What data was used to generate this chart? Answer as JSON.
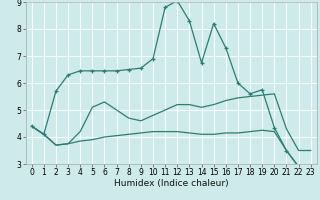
{
  "xlabel": "Humidex (Indice chaleur)",
  "background_color": "#ceeaea",
  "grid_color": "#f5ffff",
  "line_color": "#2e7d72",
  "xlim": [
    -0.5,
    23.5
  ],
  "ylim": [
    3,
    9
  ],
  "xticks": [
    0,
    1,
    2,
    3,
    4,
    5,
    6,
    7,
    8,
    9,
    10,
    11,
    12,
    13,
    14,
    15,
    16,
    17,
    18,
    19,
    20,
    21,
    22,
    23
  ],
  "yticks": [
    3,
    4,
    5,
    6,
    7,
    8,
    9
  ],
  "lines": [
    {
      "x": [
        0,
        1,
        2,
        3,
        4,
        5,
        6,
        7,
        8,
        9,
        10,
        11,
        12,
        13,
        14,
        15,
        16,
        17,
        18,
        19,
        20,
        21,
        22,
        23
      ],
      "y": [
        4.4,
        4.1,
        3.7,
        3.75,
        3.85,
        3.9,
        4.0,
        4.05,
        4.1,
        4.15,
        4.2,
        4.2,
        4.2,
        4.15,
        4.1,
        4.1,
        4.15,
        4.15,
        4.2,
        4.25,
        4.2,
        3.5,
        2.9,
        2.8
      ],
      "marker": null
    },
    {
      "x": [
        0,
        1,
        2,
        3,
        4,
        5,
        6,
        7,
        8,
        9,
        10,
        11,
        12,
        13,
        14,
        15,
        16,
        17,
        18,
        19,
        20,
        21,
        22,
        23
      ],
      "y": [
        4.4,
        4.1,
        3.7,
        3.75,
        4.2,
        5.1,
        5.3,
        5.0,
        4.7,
        4.6,
        4.8,
        5.0,
        5.2,
        5.2,
        5.1,
        5.2,
        5.35,
        5.45,
        5.5,
        5.55,
        5.6,
        4.3,
        3.5,
        3.5
      ],
      "marker": null
    },
    {
      "x": [
        0,
        1,
        2,
        3,
        4,
        5,
        6,
        7,
        8,
        9,
        10,
        11,
        12,
        13,
        14,
        15,
        16,
        17,
        18,
        19,
        20,
        21,
        22,
        23
      ],
      "y": [
        4.4,
        4.1,
        5.7,
        6.3,
        6.45,
        6.45,
        6.45,
        6.45,
        6.5,
        6.55,
        6.9,
        8.8,
        9.05,
        8.3,
        6.75,
        8.2,
        7.3,
        6.0,
        5.6,
        5.75,
        4.35,
        3.5,
        2.9,
        2.8
      ],
      "marker": "+"
    }
  ],
  "tick_fontsize": 5.5,
  "xlabel_fontsize": 6.5
}
